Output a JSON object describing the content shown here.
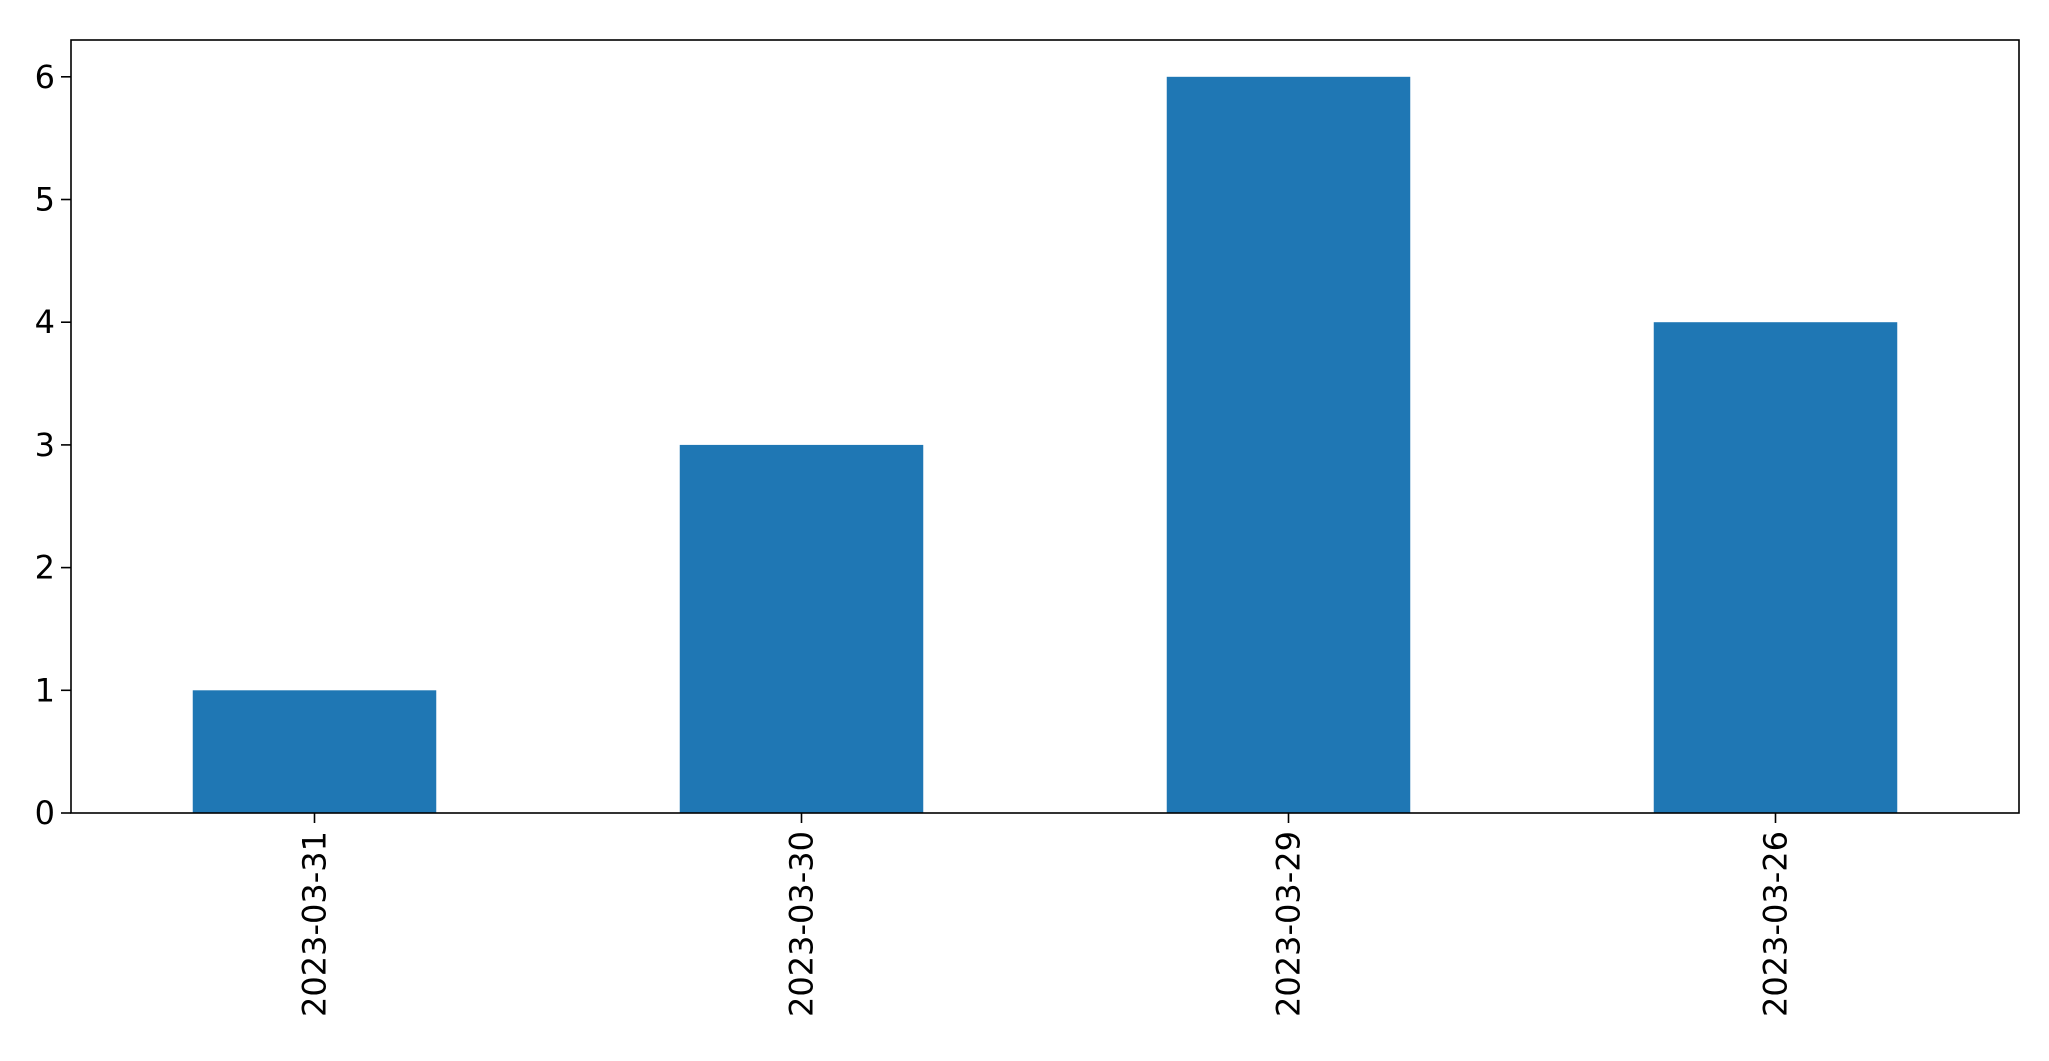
{
  "chart_data": {
    "type": "bar",
    "categories": [
      "2023-03-31",
      "2023-03-30",
      "2023-03-29",
      "2023-03-26"
    ],
    "values": [
      1,
      3,
      6,
      4
    ],
    "title": "",
    "xlabel": "",
    "ylabel": "",
    "ylim": [
      0,
      6.3
    ],
    "yticks": [
      0,
      1,
      2,
      3,
      4,
      5,
      6
    ],
    "xtick_rotation": "vertical",
    "grid": false,
    "legend": "none",
    "bar_color": "#1f77b4"
  }
}
